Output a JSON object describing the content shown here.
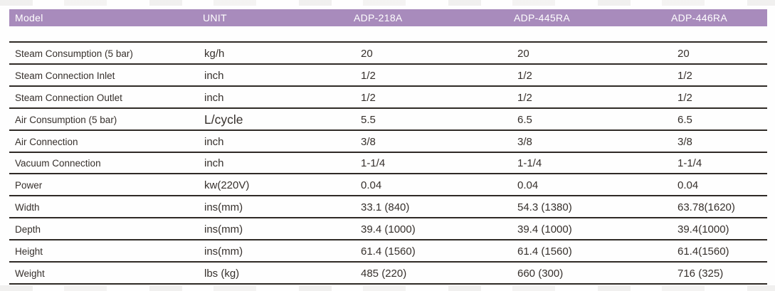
{
  "colors": {
    "header_bg": "#a88bbc",
    "header_text": "#ffffff",
    "rule_line": "#2f2a26",
    "body_text": "#36302c"
  },
  "table": {
    "columns": [
      "Model",
      "UNIT",
      "ADP-218A",
      "ADP-445RA",
      "ADP-446RA"
    ],
    "rows": [
      {
        "label": "Steam Consumption (5 bar)",
        "unit": "kg/h",
        "values": [
          "20",
          "20",
          "20"
        ]
      },
      {
        "label": "Steam Connection Inlet",
        "unit": "inch",
        "values": [
          "1/2",
          "1/2",
          "1/2"
        ]
      },
      {
        "label": "Steam Connection Outlet",
        "unit": "inch",
        "values": [
          "1/2",
          "1/2",
          "1/2"
        ]
      },
      {
        "label": "Air Consumption (5 bar)",
        "unit": "L/cycle",
        "values": [
          "5.5",
          "6.5",
          "6.5"
        ]
      },
      {
        "label": "Air Connection",
        "unit": "inch",
        "values": [
          "3/8",
          "3/8",
          "3/8"
        ]
      },
      {
        "label": "Vacuum Connection",
        "unit": "inch",
        "values": [
          "1-1/4",
          "1-1/4",
          "1-1/4"
        ]
      },
      {
        "label": "Power",
        "unit": "kw(220V)",
        "values": [
          "0.04",
          "0.04",
          "0.04"
        ]
      },
      {
        "label": "Width",
        "unit": "ins(mm)",
        "values": [
          "33.1 (840)",
          "54.3 (1380)",
          "63.78(1620)"
        ]
      },
      {
        "label": "Depth",
        "unit": "ins(mm)",
        "values": [
          "39.4 (1000)",
          "39.4 (1000)",
          "39.4(1000)"
        ]
      },
      {
        "label": "Height",
        "unit": "ins(mm)",
        "values": [
          "61.4 (1560)",
          "61.4 (1560)",
          "61.4(1560)"
        ]
      },
      {
        "label": "Weight",
        "unit": "lbs (kg)",
        "values": [
          "485 (220)",
          "660 (300)",
          "716 (325)"
        ]
      }
    ]
  }
}
